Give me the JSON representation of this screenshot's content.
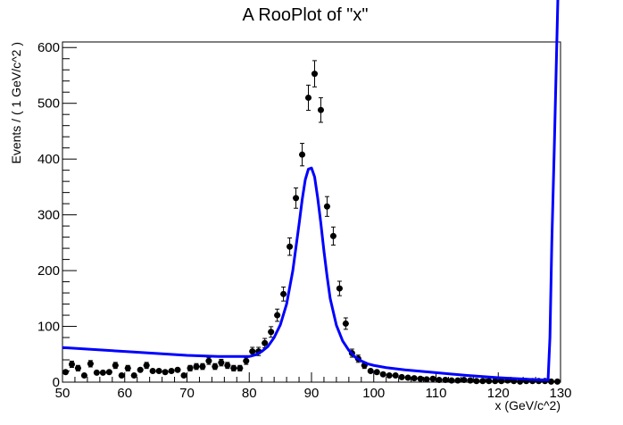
{
  "chart_data": {
    "type": "scatter",
    "title": "A RooPlot of \"x\"",
    "xlabel": "x (GeV/c^2)",
    "ylabel": "Events / ( 1 GeV/c^2 )",
    "xlim": [
      50,
      130
    ],
    "ylim": [
      0,
      610
    ],
    "xticks": [
      50,
      60,
      70,
      80,
      90,
      100,
      110,
      120,
      130
    ],
    "yticks": [
      0,
      100,
      200,
      300,
      400,
      500,
      600
    ],
    "grid": false,
    "legend": "none",
    "colors": {
      "data": "#000000",
      "curve": "#0000ff",
      "frame": "#000000"
    },
    "series": [
      {
        "kind": "points_with_errors",
        "x": [
          50.5,
          51.5,
          52.5,
          53.5,
          54.5,
          55.5,
          56.5,
          57.5,
          58.5,
          59.5,
          60.5,
          61.5,
          62.5,
          63.5,
          64.5,
          65.5,
          66.5,
          67.5,
          68.5,
          69.5,
          70.5,
          71.5,
          72.5,
          73.5,
          74.5,
          75.5,
          76.5,
          77.5,
          78.5,
          79.5,
          80.5,
          81.5,
          82.5,
          83.5,
          84.5,
          85.5,
          86.5,
          87.5,
          88.5,
          89.5,
          90.5,
          91.5,
          92.5,
          93.5,
          94.5,
          95.5,
          96.5,
          97.5,
          98.5,
          99.5,
          100.5,
          101.5,
          102.5,
          103.5,
          104.5,
          105.5,
          106.5,
          107.5,
          108.5,
          109.5,
          110.5,
          111.5,
          112.5,
          113.5,
          114.5,
          115.5,
          116.5,
          117.5,
          118.5,
          119.5,
          120.5,
          121.5,
          122.5,
          123.5,
          124.5,
          125.5,
          126.5,
          127.5,
          128.5,
          129.5
        ],
        "y": [
          18,
          32,
          25,
          12,
          33,
          17,
          17,
          18,
          30,
          12,
          25,
          12,
          22,
          30,
          20,
          20,
          18,
          20,
          22,
          12,
          25,
          28,
          28,
          38,
          28,
          35,
          30,
          25,
          25,
          38,
          55,
          55,
          70,
          90,
          120,
          158,
          243,
          330,
          408,
          510,
          553,
          488,
          315,
          262,
          168,
          105,
          52,
          42,
          30,
          20,
          18,
          14,
          12,
          12,
          9,
          8,
          7,
          6,
          5,
          6,
          4,
          4,
          3,
          3,
          4,
          3,
          2,
          2,
          2,
          2,
          2,
          3,
          2,
          1,
          2,
          2,
          2,
          2,
          1,
          1
        ]
      },
      {
        "kind": "curve",
        "x": [
          50,
          60,
          70,
          75,
          80,
          81,
          82,
          83,
          84,
          85,
          86,
          87,
          88,
          88.5,
          89,
          89.5,
          90,
          90.5,
          91,
          91.5,
          92,
          92.5,
          93,
          94,
          95,
          96,
          97,
          98,
          99,
          100,
          102,
          105,
          110,
          115,
          120,
          125,
          127,
          128,
          128.3,
          128.6,
          129,
          129.3,
          129.6
        ],
        "y": [
          62,
          55,
          48,
          46,
          46,
          49,
          55,
          64,
          80,
          103,
          140,
          200,
          283,
          327,
          363,
          382,
          384,
          368,
          330,
          285,
          235,
          190,
          150,
          102,
          74,
          57,
          45,
          38,
          33,
          30,
          26,
          22,
          17,
          12,
          8,
          5,
          4,
          4,
          80,
          250,
          420,
          560,
          700
        ]
      }
    ]
  }
}
